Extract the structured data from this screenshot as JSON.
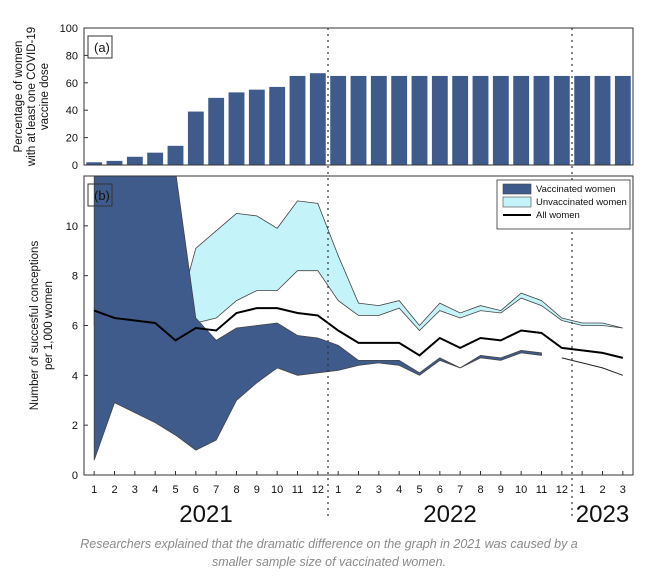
{
  "chart_data": [
    {
      "type": "bar",
      "panel_label": "(a)",
      "ylabel_lines": [
        "Percentage of women",
        "with at least one COVID-19",
        "vaccine dose"
      ],
      "ylim": [
        0,
        100
      ],
      "yticks": [
        0,
        20,
        40,
        60,
        80,
        100
      ],
      "categories": [
        "1",
        "2",
        "3",
        "4",
        "5",
        "6",
        "7",
        "8",
        "9",
        "10",
        "11",
        "12",
        "1",
        "2",
        "3",
        "4",
        "5",
        "6",
        "7",
        "8",
        "9",
        "10",
        "11",
        "12",
        "1",
        "2",
        "3"
      ],
      "values": [
        2,
        3,
        6,
        9,
        14,
        39,
        49,
        53,
        55,
        57,
        65,
        67,
        65,
        65,
        65,
        65,
        65,
        65,
        65,
        65,
        65,
        65,
        65,
        65,
        65,
        65,
        65
      ],
      "bar_color": "#3f5b8c"
    },
    {
      "type": "area",
      "panel_label": "(b)",
      "ylabel_lines": [
        "Number of succesful conceptions",
        "per 1,000 women"
      ],
      "ylim": [
        0,
        12
      ],
      "yticks": [
        0,
        2,
        4,
        6,
        8,
        10
      ],
      "x": [
        1,
        2,
        3,
        4,
        5,
        6,
        7,
        8,
        9,
        10,
        11,
        12,
        13,
        14,
        15,
        16,
        17,
        18,
        19,
        20,
        21,
        22,
        23,
        24,
        25,
        26,
        27
      ],
      "xtick_labels": [
        "1",
        "2",
        "3",
        "4",
        "5",
        "6",
        "7",
        "8",
        "9",
        "10",
        "11",
        "12",
        "1",
        "2",
        "3",
        "4",
        "5",
        "6",
        "7",
        "8",
        "9",
        "10",
        "11",
        "12",
        "1",
        "2",
        "3"
      ],
      "year_labels": [
        {
          "label": "2021",
          "center_x": 6.5
        },
        {
          "label": "2022",
          "center_x": 18.5
        },
        {
          "label": "2023",
          "center_x": 26
        }
      ],
      "year_dividers_x": [
        12.5,
        24.5
      ],
      "legend": [
        "Vaccinated women",
        "Unvaccinated women",
        "All women"
      ],
      "series": [
        {
          "name": "Vaccinated women",
          "color": "#3f5b8c",
          "upper": [
            12.2,
            12.2,
            12.2,
            12.2,
            12.2,
            6.3,
            5.4,
            5.9,
            6.0,
            6.1,
            5.6,
            5.5,
            5.2,
            4.6,
            4.6,
            4.6,
            4.1,
            4.7,
            4.3,
            4.8,
            4.7,
            5.0,
            4.9
          ],
          "lower": [
            0.6,
            2.9,
            2.5,
            2.1,
            1.6,
            1.0,
            1.4,
            3.0,
            3.7,
            4.3,
            4.0,
            4.1,
            4.2,
            4.4,
            4.5,
            4.4,
            4.0,
            4.6,
            4.3,
            4.7,
            4.6,
            4.9,
            4.8
          ]
        },
        {
          "name": "Unvaccinated women",
          "color": "#c4f4fa",
          "upper": [
            6.7,
            6.4,
            6.4,
            6.4,
            6.1,
            9.1,
            9.8,
            10.5,
            10.4,
            9.9,
            11.0,
            10.9,
            8.8,
            6.9,
            6.8,
            7.0,
            6.0,
            6.9,
            6.5,
            6.8,
            6.6,
            7.3,
            7.0,
            6.3,
            6.1,
            6.1,
            5.9
          ],
          "lower": [
            6.0,
            5.4,
            4.9,
            4.8,
            4.2,
            6.1,
            6.3,
            7.0,
            7.4,
            7.4,
            8.2,
            8.2,
            7.0,
            6.4,
            6.4,
            6.7,
            5.8,
            6.6,
            6.3,
            6.6,
            6.5,
            7.1,
            6.8,
            6.2,
            6.0,
            6.0,
            5.9
          ]
        },
        {
          "name": "All women",
          "color": "#000000",
          "values": [
            6.6,
            6.3,
            6.2,
            6.1,
            5.4,
            5.9,
            5.8,
            6.5,
            6.7,
            6.7,
            6.5,
            6.4,
            5.8,
            5.3,
            5.3,
            5.3,
            4.8,
            5.5,
            5.1,
            5.5,
            5.4,
            5.8,
            5.7,
            5.1,
            5.0,
            4.9,
            4.7
          ]
        },
        {
          "name": "",
          "color": "#222222",
          "values": [
            null,
            null,
            null,
            null,
            null,
            null,
            null,
            null,
            null,
            null,
            null,
            null,
            null,
            null,
            null,
            null,
            null,
            null,
            null,
            null,
            null,
            null,
            null,
            4.7,
            4.5,
            4.3,
            4.0
          ]
        }
      ]
    }
  ],
  "caption_lines": [
    "Researchers explained that the dramatic difference on the graph in 2021 was caused by a",
    "smaller sample size of vaccinated women."
  ]
}
